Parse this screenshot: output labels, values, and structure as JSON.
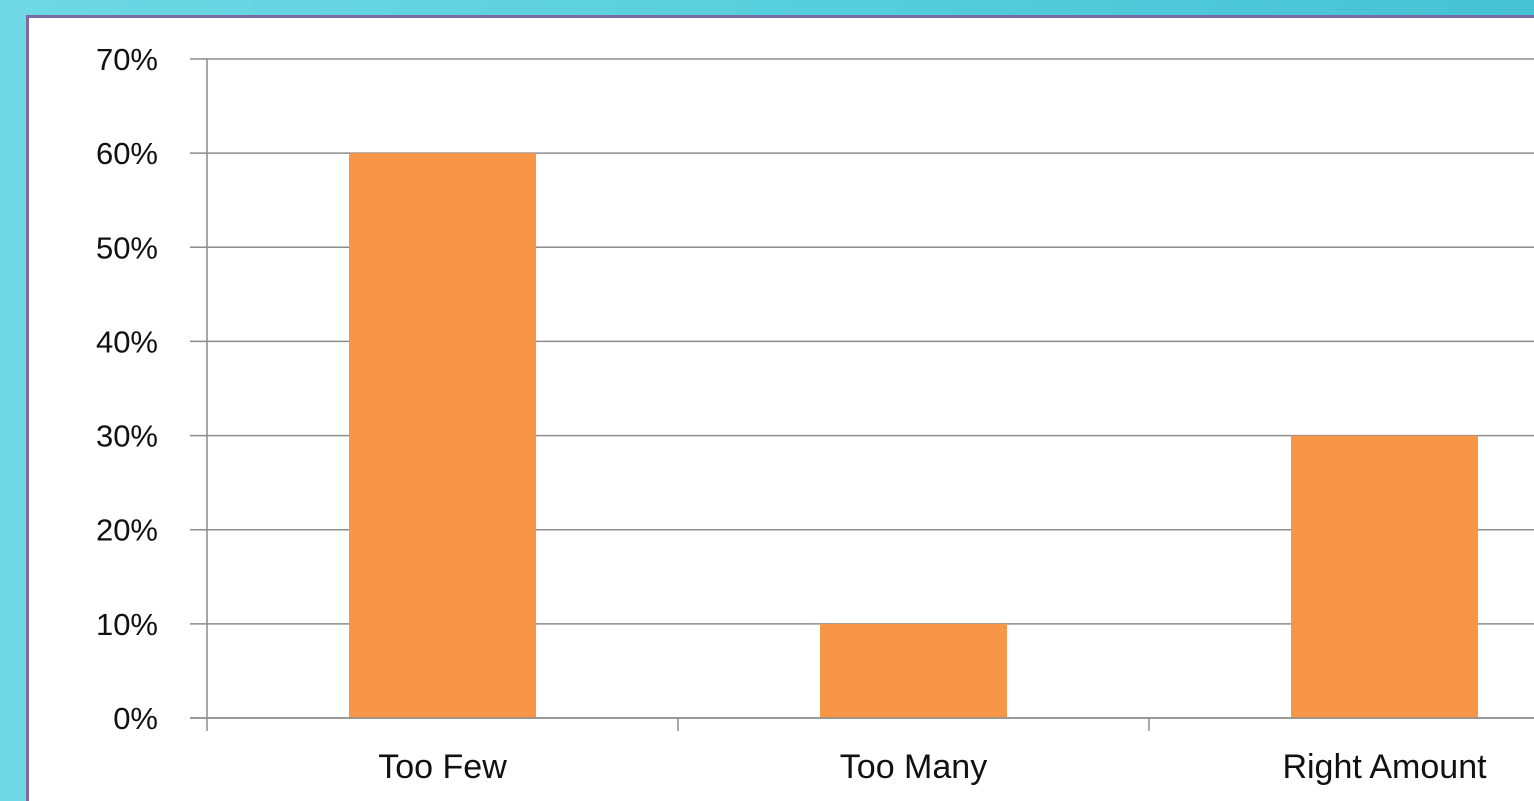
{
  "chart_data": {
    "type": "bar",
    "categories": [
      "Too Few",
      "Too Many",
      "Right Amount"
    ],
    "values": [
      60,
      10,
      30
    ],
    "ylim": [
      0,
      70
    ],
    "y_ticks": [
      "0%",
      "10%",
      "20%",
      "30%",
      "40%",
      "50%",
      "60%",
      "70%"
    ],
    "grid": true,
    "legend": "none",
    "bar_color": "#f79646",
    "grid_color": "#8c8c8c"
  }
}
